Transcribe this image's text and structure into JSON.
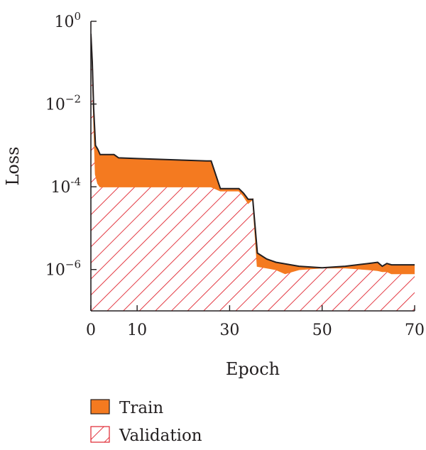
{
  "chart_data": {
    "type": "area",
    "xlabel": "Epoch",
    "ylabel": "Loss",
    "xlim": [
      0,
      70
    ],
    "ylim": [
      1e-07,
      1
    ],
    "yscale": "log",
    "x_ticks": [
      {
        "value": 0,
        "label": "0"
      },
      {
        "value": 10,
        "label": "10"
      },
      {
        "value": 30,
        "label": "30"
      },
      {
        "value": 50,
        "label": "50"
      },
      {
        "value": 70,
        "label": "70"
      }
    ],
    "y_ticks": [
      {
        "value": 1,
        "base": "10",
        "exp": "0"
      },
      {
        "value": 0.01,
        "base": "10",
        "exp": "−2"
      },
      {
        "value": 0.0001,
        "base": "10",
        "exp": "-4"
      },
      {
        "value": 1e-06,
        "base": "10",
        "exp": "−6"
      }
    ],
    "legend": {
      "placement": "bottom-left"
    },
    "series": [
      {
        "name": "Train",
        "style": "solid-fill",
        "color": "#f47a20",
        "edge_color": "#231f20",
        "x": [
          0,
          0.3,
          0.6,
          1,
          1.5,
          2,
          3,
          5,
          6,
          10,
          15,
          20,
          25,
          26,
          28,
          30,
          32,
          33,
          34,
          35,
          36,
          38,
          40,
          45,
          50,
          55,
          60,
          62,
          63,
          64,
          65,
          66,
          67,
          68,
          70
        ],
        "values": [
          0.5,
          0.1,
          0.008,
          0.001,
          0.0008,
          0.0006,
          0.0006,
          0.0006,
          0.0005,
          0.00048,
          0.00046,
          0.00044,
          0.00042,
          0.00042,
          9e-05,
          9e-05,
          9e-05,
          7e-05,
          5e-05,
          5e-05,
          2.5e-06,
          1.8e-06,
          1.5e-06,
          1.2e-06,
          1.1e-06,
          1.2e-06,
          1.4e-06,
          1.5e-06,
          1.2e-06,
          1.4e-06,
          1.3e-06,
          1.3e-06,
          1.3e-06,
          1.3e-06,
          1.3e-06
        ]
      },
      {
        "name": "Validation",
        "style": "hatched",
        "color": "#e0242f",
        "edge_color": "#f47a20",
        "x": [
          0,
          0.3,
          0.6,
          1,
          1.5,
          2,
          3,
          5,
          10,
          20,
          25,
          26,
          28,
          30,
          32,
          33,
          34,
          35,
          36,
          38,
          40,
          42,
          45,
          50,
          55,
          60,
          62,
          63,
          64,
          65,
          67,
          70
        ],
        "values": [
          0.5,
          0.1,
          0.005,
          0.0002,
          0.00012,
          0.0001,
          0.0001,
          0.0001,
          0.0001,
          0.0001,
          0.0001,
          0.0001,
          8e-05,
          8e-05,
          8e-05,
          6e-05,
          4e-05,
          5e-05,
          1.2e-06,
          1.1e-06,
          1e-06,
          8e-07,
          1e-06,
          1.1e-06,
          1.1e-06,
          1e-06,
          9.5e-07,
          9e-07,
          9e-07,
          8e-07,
          8e-07,
          8e-07
        ]
      }
    ]
  }
}
